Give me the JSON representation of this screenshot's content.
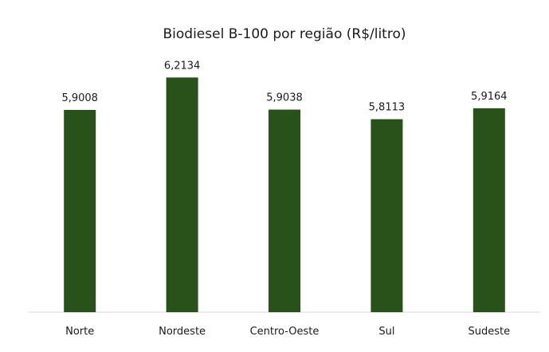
{
  "chart_data": {
    "type": "bar",
    "title": "Biodiesel B-100 por região (R$/litro)",
    "xlabel": "",
    "ylabel": "",
    "categories": [
      "Norte",
      "Nordeste",
      "Centro-Oeste",
      "Sul",
      "Sudeste"
    ],
    "values": [
      5.9008,
      6.2134,
      5.9038,
      5.8113,
      5.9164
    ],
    "value_labels": [
      "5,9008",
      "6,2134",
      "5,9038",
      "5,8113",
      "5,9164"
    ],
    "ylim": [
      3.95,
      6.5
    ],
    "grid": false,
    "legend": "none",
    "bar_color": "#285219",
    "axis_color": "#d9d9d9"
  }
}
